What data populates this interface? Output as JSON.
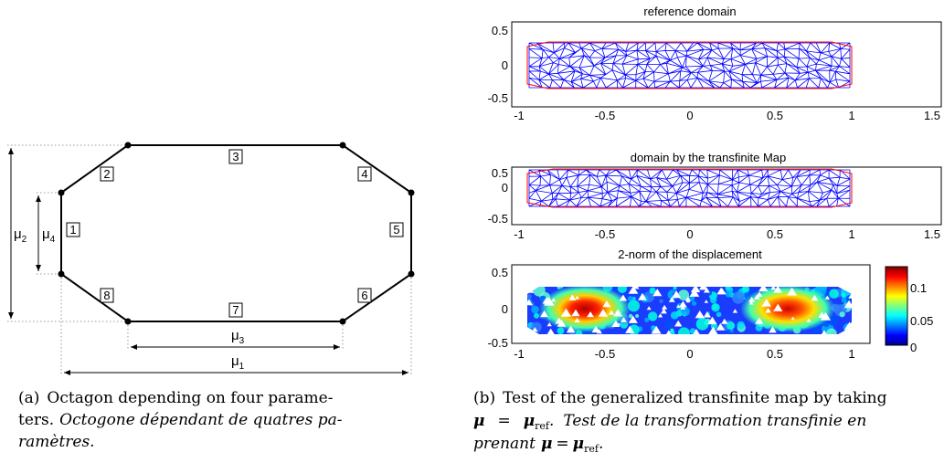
{
  "figure_a": {
    "edge_labels": [
      "1",
      "2",
      "3",
      "4",
      "5",
      "6",
      "7",
      "8"
    ],
    "mu_labels": {
      "mu1": {
        "base": "μ",
        "sub": "1"
      },
      "mu2": {
        "base": "μ",
        "sub": "2"
      },
      "mu3": {
        "base": "μ",
        "sub": "3"
      },
      "mu4": {
        "base": "μ",
        "sub": "4"
      }
    },
    "caption": {
      "tag": "(a)",
      "line1": "Octagon depending on four parame-",
      "line2_a": "ters.",
      "line2_b": "Octogone dépendant de quatres pa-",
      "line3": "ramètres."
    }
  },
  "figure_b": {
    "panels": [
      {
        "title": "reference domain",
        "kind": "mesh",
        "mesh_color": "#0000ff",
        "boundary_color": "#ff0000"
      },
      {
        "title": "domain by the transfinite Map",
        "kind": "mesh",
        "mesh_color": "#0000ff",
        "boundary_color": "#ff0000"
      },
      {
        "title": "2-norm of the displacement",
        "kind": "heatmap"
      }
    ],
    "xticks": [
      "-1",
      "-0.5",
      "0",
      "0.5",
      "1",
      "1.5"
    ],
    "xticks_last": [
      "-1",
      "-0.5",
      "0",
      "0.5",
      "1"
    ],
    "yticks": [
      "0.5",
      "0",
      "-0.5"
    ],
    "colorbar": {
      "ticks": [
        "0.1",
        "0.05",
        "0"
      ],
      "colormap": "jet"
    },
    "caption": {
      "tag": "(b)",
      "line1": "Test of the generalized transfinite map by taking",
      "line2_it": "Test de la transformation transfinie en",
      "line3_it": "prenant"
    }
  },
  "chart_data": [
    {
      "type": "mesh",
      "title": "reference domain",
      "xlim": [
        -1.05,
        1.5
      ],
      "ylim": [
        -0.55,
        0.55
      ],
      "x_ticks": [
        -1,
        -0.5,
        0,
        0.5,
        1,
        1.5
      ],
      "y_ticks": [
        -0.5,
        0,
        0.5
      ],
      "grid": false
    },
    {
      "type": "mesh",
      "title": "domain by the transfinite Map",
      "xlim": [
        -1.05,
        1.5
      ],
      "ylim": [
        -0.55,
        0.55
      ],
      "x_ticks": [
        -1,
        -0.5,
        0,
        0.5,
        1,
        1.5
      ],
      "y_ticks": [
        -0.5,
        0,
        0.5
      ],
      "grid": false
    },
    {
      "type": "heatmap",
      "title": "2-norm of the displacement",
      "xlim": [
        -1.05,
        1.05
      ],
      "ylim": [
        -0.55,
        0.55
      ],
      "x_ticks": [
        -1,
        -0.5,
        0,
        0.5,
        1
      ],
      "y_ticks": [
        -0.5,
        0,
        0.5
      ],
      "colorbar_range": [
        0,
        0.13
      ],
      "colorbar_ticks": [
        0,
        0.05,
        0.1
      ]
    }
  ]
}
